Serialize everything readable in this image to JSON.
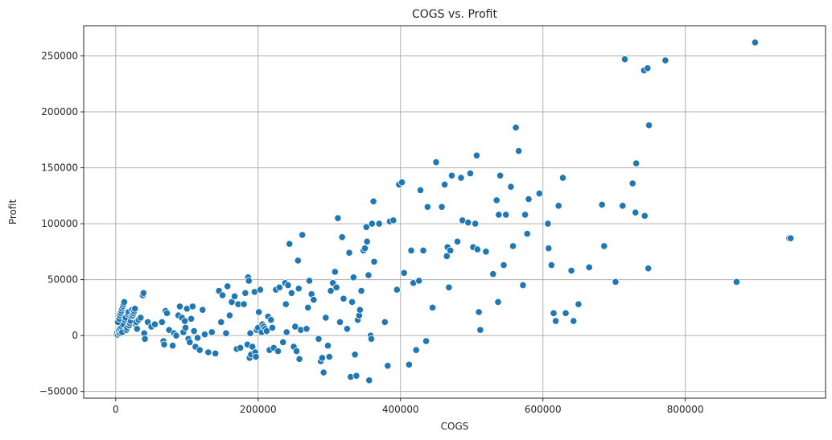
{
  "chart_data": {
    "type": "scatter",
    "title": "COGS vs. Profit",
    "xlabel": "COGS",
    "ylabel": "Profit",
    "xlim": [
      -45000,
      997000
    ],
    "ylim": [
      -56000,
      277000
    ],
    "xticks": [
      0,
      200000,
      400000,
      600000,
      800000
    ],
    "yticks": [
      -50000,
      0,
      50000,
      100000,
      150000,
      200000,
      250000
    ],
    "grid": true,
    "point_color": "#1f77b4",
    "points": [
      [
        1000,
        1000
      ],
      [
        2000,
        2500
      ],
      [
        3000,
        500
      ],
      [
        4000,
        4000
      ],
      [
        5000,
        1500
      ],
      [
        6000,
        6000
      ],
      [
        7000,
        2000
      ],
      [
        8000,
        8000
      ],
      [
        9000,
        3000
      ],
      [
        10000,
        10000
      ],
      [
        3000,
        12000
      ],
      [
        5000,
        15000
      ],
      [
        6000,
        18000
      ],
      [
        7000,
        20000
      ],
      [
        8000,
        22000
      ],
      [
        9000,
        24000
      ],
      [
        10000,
        26000
      ],
      [
        11000,
        28000
      ],
      [
        12000,
        30000
      ],
      [
        13000,
        14000
      ],
      [
        14000,
        16000
      ],
      [
        15000,
        5000
      ],
      [
        16000,
        7000
      ],
      [
        17000,
        19000
      ],
      [
        18000,
        21000
      ],
      [
        19000,
        9000
      ],
      [
        20000,
        11000
      ],
      [
        21000,
        13000
      ],
      [
        22000,
        17000
      ],
      [
        23000,
        23000
      ],
      [
        24000,
        18000
      ],
      [
        25000,
        20000
      ],
      [
        26000,
        22000
      ],
      [
        27000,
        24000
      ],
      [
        28000,
        10000
      ],
      [
        29000,
        12000
      ],
      [
        30000,
        6000
      ],
      [
        32000,
        14000
      ],
      [
        35000,
        16000
      ],
      [
        38000,
        36000
      ],
      [
        39000,
        38000
      ],
      [
        40000,
        2000
      ],
      [
        41000,
        -3000
      ],
      [
        45000,
        12000
      ],
      [
        50000,
        8000
      ],
      [
        55000,
        10000
      ],
      [
        65000,
        12000
      ],
      [
        67000,
        -5000
      ],
      [
        68000,
        -8000
      ],
      [
        70000,
        22000
      ],
      [
        72000,
        20000
      ],
      [
        75000,
        5000
      ],
      [
        80000,
        -9000
      ],
      [
        82000,
        2000
      ],
      [
        85000,
        0
      ],
      [
        88000,
        18000
      ],
      [
        90000,
        26000
      ],
      [
        93000,
        16000
      ],
      [
        95000,
        3000
      ],
      [
        97000,
        13000
      ],
      [
        98000,
        7000
      ],
      [
        100000,
        24000
      ],
      [
        102000,
        -3000
      ],
      [
        104000,
        -6000
      ],
      [
        106000,
        15000
      ],
      [
        108000,
        26000
      ],
      [
        110000,
        4000
      ],
      [
        112000,
        -10000
      ],
      [
        115000,
        -2000
      ],
      [
        118000,
        -13000
      ],
      [
        122000,
        23000
      ],
      [
        125000,
        1000
      ],
      [
        130000,
        -15000
      ],
      [
        135000,
        3000
      ],
      [
        140000,
        -16000
      ],
      [
        145000,
        40000
      ],
      [
        148000,
        12000
      ],
      [
        150000,
        36000
      ],
      [
        155000,
        2000
      ],
      [
        157000,
        44000
      ],
      [
        160000,
        18000
      ],
      [
        163000,
        30000
      ],
      [
        167000,
        35000
      ],
      [
        170000,
        -12000
      ],
      [
        172000,
        28000
      ],
      [
        175000,
        -11000
      ],
      [
        180000,
        28000
      ],
      [
        182000,
        38000
      ],
      [
        185000,
        -8000
      ],
      [
        186000,
        52000
      ],
      [
        187000,
        49000
      ],
      [
        188000,
        -20000
      ],
      [
        189000,
        2000
      ],
      [
        190000,
        -17000
      ],
      [
        192000,
        -10000
      ],
      [
        195000,
        39000
      ],
      [
        196000,
        -15000
      ],
      [
        197000,
        -19000
      ],
      [
        198000,
        5000
      ],
      [
        200000,
        7000
      ],
      [
        201000,
        21000
      ],
      [
        203000,
        41000
      ],
      [
        205000,
        3000
      ],
      [
        206000,
        10000
      ],
      [
        208000,
        8000
      ],
      [
        210000,
        6000
      ],
      [
        212000,
        4000
      ],
      [
        214000,
        17000
      ],
      [
        216000,
        -13000
      ],
      [
        218000,
        14000
      ],
      [
        220000,
        7000
      ],
      [
        222000,
        -11000
      ],
      [
        225000,
        41000
      ],
      [
        228000,
        -14000
      ],
      [
        230000,
        43000
      ],
      [
        235000,
        -6000
      ],
      [
        238000,
        47000
      ],
      [
        239000,
        28000
      ],
      [
        240000,
        3000
      ],
      [
        242000,
        45000
      ],
      [
        244000,
        82000
      ],
      [
        247000,
        38000
      ],
      [
        250000,
        -10000
      ],
      [
        252000,
        8000
      ],
      [
        254000,
        -14000
      ],
      [
        256000,
        67000
      ],
      [
        257000,
        42000
      ],
      [
        258000,
        -21000
      ],
      [
        260000,
        5000
      ],
      [
        262000,
        90000
      ],
      [
        268000,
        6000
      ],
      [
        270000,
        25000
      ],
      [
        272000,
        49000
      ],
      [
        275000,
        37000
      ],
      [
        278000,
        32000
      ],
      [
        285000,
        -3000
      ],
      [
        288000,
        -23000
      ],
      [
        290000,
        -20000
      ],
      [
        292000,
        -33000
      ],
      [
        295000,
        16000
      ],
      [
        298000,
        -9000
      ],
      [
        300000,
        -19000
      ],
      [
        302000,
        40000
      ],
      [
        305000,
        47000
      ],
      [
        308000,
        57000
      ],
      [
        310000,
        43000
      ],
      [
        312000,
        105000
      ],
      [
        315000,
        12000
      ],
      [
        318000,
        88000
      ],
      [
        320000,
        33000
      ],
      [
        325000,
        6000
      ],
      [
        328000,
        74000
      ],
      [
        330000,
        -37000
      ],
      [
        332000,
        30000
      ],
      [
        334000,
        52000
      ],
      [
        336000,
        -17000
      ],
      [
        338000,
        -36000
      ],
      [
        340000,
        14000
      ],
      [
        342000,
        18000
      ],
      [
        343000,
        23000
      ],
      [
        345000,
        40000
      ],
      [
        348000,
        76000
      ],
      [
        350000,
        78000
      ],
      [
        352000,
        97000
      ],
      [
        353000,
        84000
      ],
      [
        355000,
        54000
      ],
      [
        356000,
        -40000
      ],
      [
        358000,
        0
      ],
      [
        359000,
        -3000
      ],
      [
        360000,
        100000
      ],
      [
        362000,
        120000
      ],
      [
        363000,
        66000
      ],
      [
        370000,
        100000
      ],
      [
        378000,
        12000
      ],
      [
        382000,
        -27000
      ],
      [
        385000,
        102000
      ],
      [
        390000,
        103000
      ],
      [
        395000,
        41000
      ],
      [
        398000,
        135000
      ],
      [
        402000,
        137000
      ],
      [
        405000,
        56000
      ],
      [
        412000,
        -26000
      ],
      [
        415000,
        76000
      ],
      [
        418000,
        47000
      ],
      [
        422000,
        -13000
      ],
      [
        426000,
        49000
      ],
      [
        428000,
        130000
      ],
      [
        432000,
        76000
      ],
      [
        436000,
        -5000
      ],
      [
        438000,
        115000
      ],
      [
        445000,
        25000
      ],
      [
        450000,
        155000
      ],
      [
        458000,
        115000
      ],
      [
        462000,
        135000
      ],
      [
        465000,
        71000
      ],
      [
        466000,
        79000
      ],
      [
        468000,
        43000
      ],
      [
        470000,
        76000
      ],
      [
        472000,
        143000
      ],
      [
        480000,
        84000
      ],
      [
        485000,
        141000
      ],
      [
        487000,
        103000
      ],
      [
        495000,
        101000
      ],
      [
        498000,
        145000
      ],
      [
        502000,
        79000
      ],
      [
        505000,
        100000
      ],
      [
        507000,
        161000
      ],
      [
        508000,
        77000
      ],
      [
        510000,
        21000
      ],
      [
        512000,
        5000
      ],
      [
        520000,
        75000
      ],
      [
        530000,
        55000
      ],
      [
        535000,
        121000
      ],
      [
        537000,
        30000
      ],
      [
        538000,
        108000
      ],
      [
        540000,
        143000
      ],
      [
        545000,
        63000
      ],
      [
        548000,
        108000
      ],
      [
        555000,
        133000
      ],
      [
        558000,
        80000
      ],
      [
        562000,
        186000
      ],
      [
        566000,
        165000
      ],
      [
        572000,
        45000
      ],
      [
        575000,
        108000
      ],
      [
        578000,
        91000
      ],
      [
        580000,
        122000
      ],
      [
        595000,
        127000
      ],
      [
        607000,
        100000
      ],
      [
        608000,
        78000
      ],
      [
        612000,
        63000
      ],
      [
        615000,
        20000
      ],
      [
        618000,
        13000
      ],
      [
        622000,
        116000
      ],
      [
        628000,
        141000
      ],
      [
        632000,
        20000
      ],
      [
        640000,
        58000
      ],
      [
        643000,
        13000
      ],
      [
        650000,
        28000
      ],
      [
        665000,
        61000
      ],
      [
        683000,
        117000
      ],
      [
        686000,
        80000
      ],
      [
        702000,
        48000
      ],
      [
        712000,
        116000
      ],
      [
        715000,
        247000
      ],
      [
        726000,
        136000
      ],
      [
        730000,
        110000
      ],
      [
        731000,
        154000
      ],
      [
        742000,
        237000
      ],
      [
        743000,
        107000
      ],
      [
        747000,
        239000
      ],
      [
        748000,
        60000
      ],
      [
        749000,
        188000
      ],
      [
        772000,
        246000
      ],
      [
        872000,
        48000
      ],
      [
        898000,
        262000
      ],
      [
        946000,
        87000
      ],
      [
        948000,
        87000
      ]
    ]
  }
}
